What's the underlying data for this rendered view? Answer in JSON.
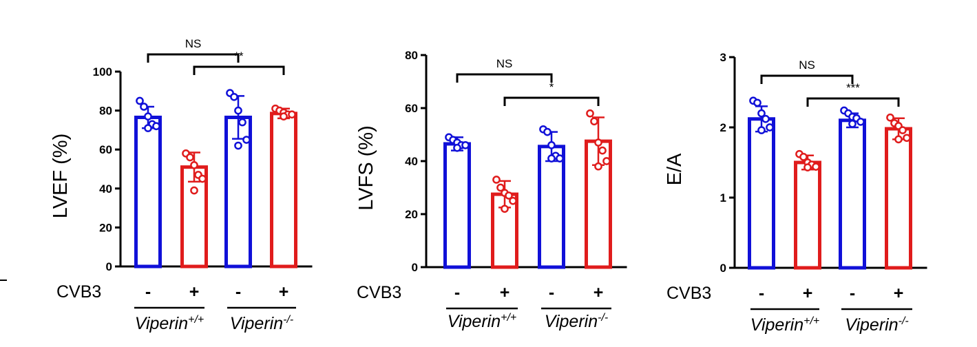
{
  "colors": {
    "wt": "#1010d8",
    "ko": "#e01c1c",
    "ink": "#000000"
  },
  "row_labels": {
    "condition": "CVB3"
  },
  "groups": [
    {
      "name": "Viperin",
      "sup": "+/+"
    },
    {
      "name": "Viperin",
      "sup": "-/-"
    }
  ],
  "chart_data": [
    {
      "type": "bar",
      "ylabel": "LVEF (%)",
      "ylim": [
        0,
        100
      ],
      "yticks": [
        0,
        20,
        40,
        60,
        80,
        100
      ],
      "categories": [
        "-",
        "+",
        "-",
        "+"
      ],
      "bar_colors": [
        "wt",
        "ko",
        "wt",
        "ko"
      ],
      "values": [
        76.5,
        51,
        76.5,
        78.5
      ],
      "errors": [
        5.5,
        7.5,
        11,
        2.5
      ],
      "points": [
        [
          85,
          82,
          77,
          73,
          72,
          71
        ],
        [
          58,
          56,
          52,
          47,
          45,
          39
        ],
        [
          89,
          87,
          80,
          74,
          65,
          62
        ],
        [
          81,
          80,
          79,
          78,
          78,
          77
        ]
      ],
      "comparisons": [
        {
          "from": 0,
          "to": 2,
          "label": "NS",
          "level": 0
        },
        {
          "from": 1,
          "to": 3,
          "label": "**",
          "level": 1
        }
      ]
    },
    {
      "type": "bar",
      "ylabel": "LVFS (%)",
      "ylim": [
        0,
        80
      ],
      "yticks": [
        0,
        20,
        40,
        60,
        80
      ],
      "categories": [
        "-",
        "+",
        "-",
        "+"
      ],
      "bar_colors": [
        "wt",
        "ko",
        "wt",
        "ko"
      ],
      "values": [
        46.5,
        27.5,
        45.5,
        47.5
      ],
      "errors": [
        2.5,
        5,
        5.5,
        9
      ],
      "points": [
        [
          49,
          48,
          47,
          46,
          46,
          45
        ],
        [
          33,
          30,
          28,
          27,
          25,
          22
        ],
        [
          52,
          51,
          46,
          42,
          41,
          41
        ],
        [
          58,
          55,
          47,
          44,
          40,
          38
        ]
      ],
      "comparisons": [
        {
          "from": 0,
          "to": 2,
          "label": "NS",
          "level": 0
        },
        {
          "from": 1,
          "to": 3,
          "label": "*",
          "level": 1
        }
      ]
    },
    {
      "type": "bar",
      "ylabel": "E/A",
      "ylim": [
        0,
        3
      ],
      "yticks": [
        0,
        1,
        2,
        3
      ],
      "categories": [
        "-",
        "+",
        "-",
        "+"
      ],
      "bar_colors": [
        "wt",
        "ko",
        "wt",
        "ko"
      ],
      "values": [
        2.12,
        1.5,
        2.1,
        1.98
      ],
      "errors": [
        0.18,
        0.1,
        0.1,
        0.15
      ],
      "points": [
        [
          2.38,
          2.35,
          2.2,
          2.12,
          2.0,
          1.96
        ],
        [
          1.62,
          1.58,
          1.5,
          1.47,
          1.44,
          1.43
        ],
        [
          2.24,
          2.2,
          2.15,
          2.13,
          2.08,
          2.05
        ],
        [
          2.14,
          2.06,
          2.02,
          1.96,
          1.85,
          1.83
        ]
      ],
      "comparisons": [
        {
          "from": 0,
          "to": 2,
          "label": "NS",
          "level": 0
        },
        {
          "from": 1,
          "to": 3,
          "label": "***",
          "level": 1
        }
      ]
    }
  ]
}
